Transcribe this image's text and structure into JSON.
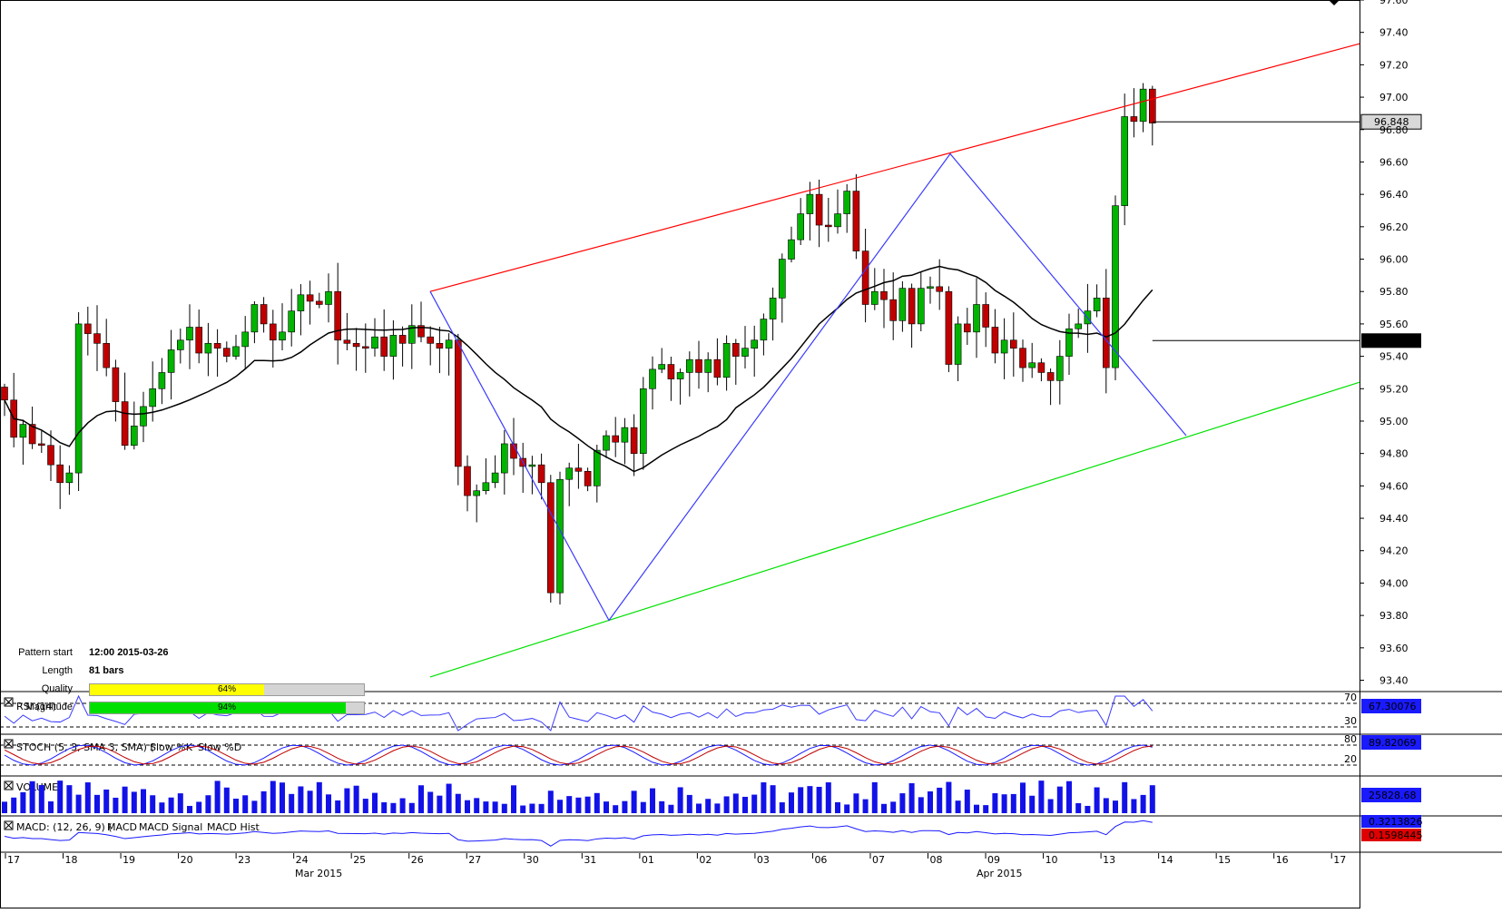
{
  "pattern_info": {
    "start_label": "Pattern start",
    "start_value": "12:00 2015-03-26",
    "length_label": "Length",
    "length_value": "81 bars",
    "quality_label": "Quality",
    "quality_value": "64%",
    "quality_fraction": 0.64,
    "magnitude_label": "Magnitude",
    "magnitude_value": "94%",
    "magnitude_fraction": 0.94,
    "quality_color": "#ffff00",
    "magnitude_color": "#00e000"
  },
  "panels": {
    "rsi": {
      "title": "RSI (14)",
      "value": "67.30076",
      "levels": [
        "70",
        "30"
      ]
    },
    "stoch": {
      "title_prefix": "STOCH (5, 3, SMA 3, SMA)",
      "k": "Slow %K",
      "d": "Slow %D",
      "value": "89.82069",
      "levels": [
        "80",
        "20"
      ]
    },
    "volume": {
      "title": "VOLUME",
      "value": "25828.68"
    },
    "macd": {
      "title_prefix": "MACD: (12, 26, 9)",
      "s1": "MACD",
      "s2": "MACD Signal",
      "s3": "MACD Hist",
      "value1": "0.3213826",
      "value2": "0.1598445"
    }
  },
  "colors": {
    "up": "#00b400",
    "down": "#c00000",
    "resistance": "#ff0000",
    "support": "#00e000",
    "zigzag": "#3a3aff",
    "ma": "#000000",
    "volume": "#1212e8"
  },
  "chart_data": {
    "type": "candlestick",
    "y_axis_ticks": [
      "97.60",
      "97.40",
      "97.20",
      "97.00",
      "96.80",
      "96.60",
      "96.40",
      "96.20",
      "96.00",
      "95.80",
      "95.60",
      "95.40",
      "95.20",
      "95.00",
      "94.80",
      "94.60",
      "94.40",
      "94.20",
      "94.00",
      "93.80",
      "93.60",
      "93.40"
    ],
    "ylim": [
      93.33,
      97.6
    ],
    "last_price": "96.848",
    "ma_value": "95.497",
    "x_axis_labels": [
      "17",
      "18",
      "19",
      "20",
      "23",
      "24",
      "25",
      "26",
      "27",
      "30",
      "31",
      "01",
      "02",
      "03",
      "06",
      "07",
      "08",
      "09",
      "10",
      "13",
      "14",
      "15",
      "16",
      "17"
    ],
    "month_labels": [
      "Mar 2015",
      "Apr 2015"
    ],
    "closes": [
      95.13,
      94.9,
      94.98,
      94.86,
      94.85,
      94.73,
      94.62,
      94.68,
      95.6,
      95.54,
      95.48,
      95.33,
      95.12,
      94.85,
      94.97,
      95.09,
      95.2,
      95.3,
      95.44,
      95.5,
      95.58,
      95.42,
      95.48,
      95.45,
      95.4,
      95.46,
      95.55,
      95.72,
      95.6,
      95.5,
      95.55,
      95.68,
      95.78,
      95.74,
      95.72,
      95.8,
      95.5,
      95.48,
      95.46,
      95.45,
      95.52,
      95.4,
      95.53,
      95.48,
      95.59,
      95.52,
      95.48,
      95.45,
      95.5,
      94.72,
      94.54,
      94.57,
      94.62,
      94.68,
      94.86,
      94.77,
      94.72,
      94.73,
      94.62,
      93.94,
      94.64,
      94.71,
      94.69,
      94.6,
      94.82,
      94.91,
      94.87,
      94.96,
      94.8,
      95.2,
      95.32,
      95.35,
      95.26,
      95.3,
      95.38,
      95.3,
      95.38,
      95.27,
      95.48,
      95.4,
      95.45,
      95.5,
      95.63,
      95.76,
      96.0,
      96.12,
      96.28,
      96.4,
      96.21,
      96.2,
      96.28,
      96.42,
      96.05,
      95.72,
      95.8,
      95.75,
      95.62,
      95.82,
      95.6,
      95.82,
      95.83,
      95.8,
      95.35,
      95.6,
      95.55,
      95.72,
      95.58,
      95.42,
      95.5,
      95.45,
      95.33,
      95.36,
      95.3,
      95.25,
      95.4,
      95.57,
      95.6,
      95.68,
      95.76,
      95.33,
      96.33,
      96.88,
      96.85,
      97.05,
      96.84
    ]
  }
}
